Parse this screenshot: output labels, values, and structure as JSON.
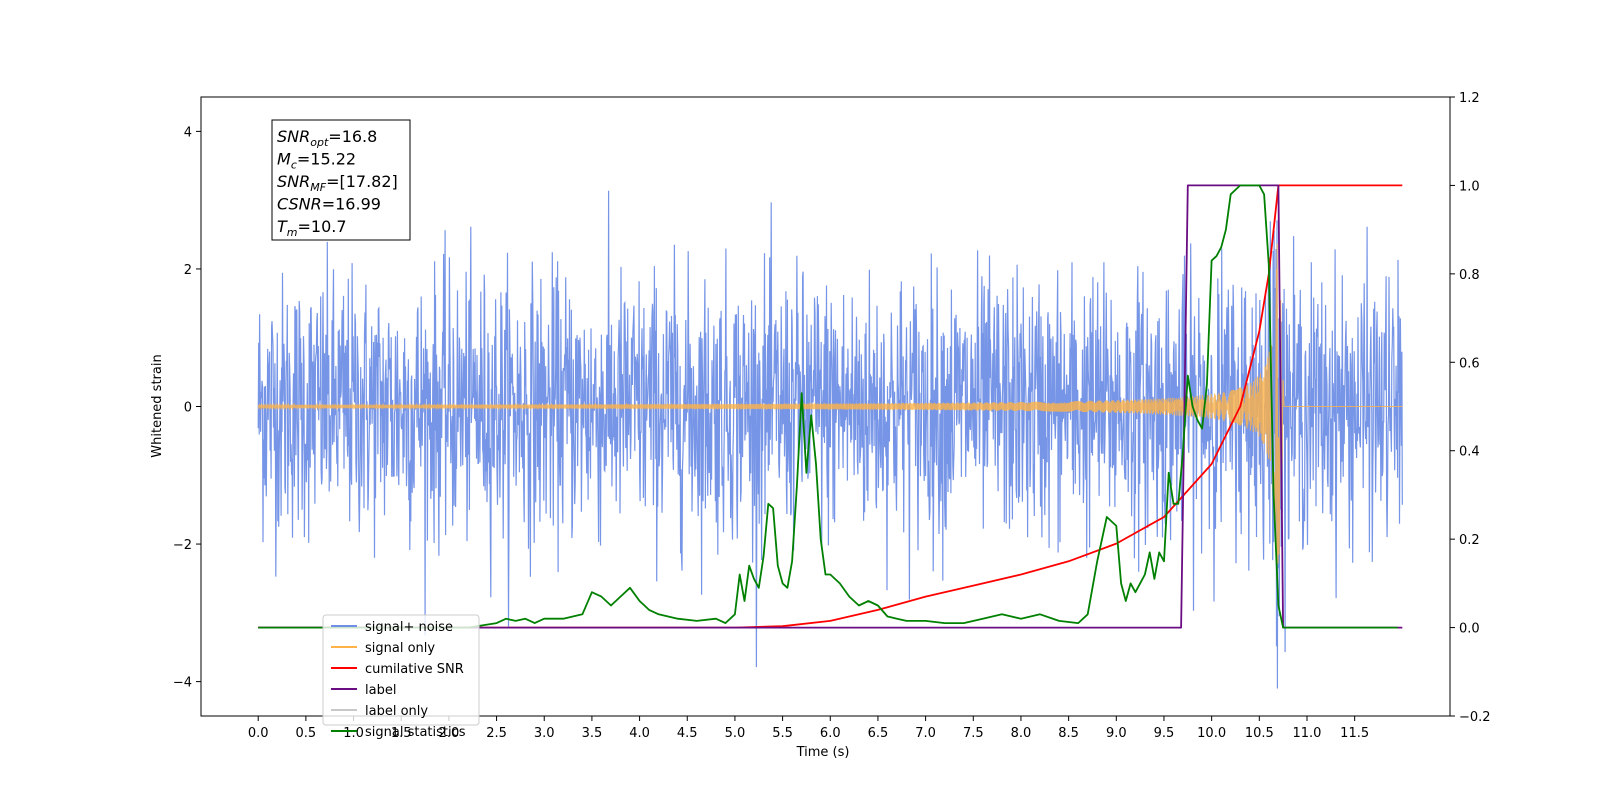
{
  "chart_data": {
    "type": "line",
    "xlabel": "Time (s)",
    "ylabel": "Whitened strain",
    "xlim": [
      -0.6,
      12.5
    ],
    "xticks": [
      "0.0",
      "0.5",
      "1.0",
      "1.5",
      "2.0",
      "2.5",
      "3.0",
      "3.5",
      "4.0",
      "4.5",
      "5.0",
      "5.5",
      "6.0",
      "6.5",
      "7.0",
      "7.5",
      "8.0",
      "8.5",
      "9.0",
      "9.5",
      "10.0",
      "10.5",
      "11.0",
      "11.5"
    ],
    "ylim_left": [
      -4.5,
      4.5
    ],
    "yticks_left": [
      "−4",
      "−2",
      "0",
      "2",
      "4"
    ],
    "ylim_right": [
      -0.2,
      1.2
    ],
    "yticks_right": [
      "−0.2",
      "0.0",
      "0.2",
      "0.4",
      "0.6",
      "0.8",
      "1.0",
      "1.2"
    ],
    "grid": false,
    "legend_position": "lower-left",
    "annotation": [
      {
        "base": "SNR",
        "sub": "opt",
        "value": "=16.8"
      },
      {
        "base": "M",
        "sub": "c",
        "value": "=15.22"
      },
      {
        "base": "SNR",
        "sub": "MF",
        "value": "=[17.82]"
      },
      {
        "base": "CSNR",
        "sub": "",
        "value": "=16.99"
      },
      {
        "base": "T",
        "sub": "m",
        "value": "=10.7"
      }
    ],
    "series": [
      {
        "name": "signal+ noise",
        "axis": "left",
        "color": "#6f8fe6",
        "description_values": {
          "noise_amplitude_approx": 1.0,
          "x_range": [
            0.0,
            12.0
          ]
        }
      },
      {
        "name": "signal only",
        "axis": "left",
        "color": "#ffb347",
        "chirp": {
          "merger_time": 10.7,
          "peak_amplitude": 2.6,
          "end_time": 12.0
        }
      },
      {
        "name": "cumilative SNR",
        "axis": "right",
        "color": "#ff0000",
        "x": [
          0.0,
          5.0,
          5.5,
          6.0,
          6.5,
          7.0,
          7.5,
          8.0,
          8.5,
          9.0,
          9.5,
          10.0,
          10.3,
          10.5,
          10.6,
          10.7,
          12.0
        ],
        "y": [
          0.0,
          0.0,
          0.003,
          0.015,
          0.04,
          0.07,
          0.095,
          0.12,
          0.15,
          0.19,
          0.25,
          0.37,
          0.5,
          0.67,
          0.8,
          1.0,
          1.0
        ]
      },
      {
        "name": "label",
        "axis": "right",
        "color": "#6a0d83",
        "x": [
          0.0,
          9.68,
          9.75,
          10.7,
          10.75,
          12.0
        ],
        "y": [
          0.0,
          0.0,
          1.0,
          1.0,
          0.0,
          0.0
        ]
      },
      {
        "name": "label only",
        "axis": "right",
        "color": "#c8c8c8",
        "x": [],
        "y": []
      },
      {
        "name": "signal statistics",
        "axis": "right",
        "color": "#008000",
        "x": [
          0.0,
          2.2,
          2.5,
          2.6,
          2.7,
          2.8,
          2.9,
          3.0,
          3.2,
          3.3,
          3.4,
          3.5,
          3.6,
          3.7,
          3.8,
          3.9,
          4.0,
          4.1,
          4.2,
          4.4,
          4.6,
          4.8,
          4.9,
          5.0,
          5.05,
          5.1,
          5.15,
          5.2,
          5.25,
          5.3,
          5.35,
          5.4,
          5.45,
          5.5,
          5.55,
          5.6,
          5.65,
          5.7,
          5.75,
          5.8,
          5.85,
          5.9,
          5.95,
          6.0,
          6.05,
          6.1,
          6.2,
          6.3,
          6.4,
          6.5,
          6.6,
          6.7,
          6.8,
          7.0,
          7.2,
          7.4,
          7.6,
          7.8,
          8.0,
          8.2,
          8.4,
          8.6,
          8.7,
          8.8,
          8.9,
          9.0,
          9.05,
          9.1,
          9.15,
          9.2,
          9.25,
          9.3,
          9.35,
          9.4,
          9.45,
          9.5,
          9.55,
          9.6,
          9.65,
          9.7,
          9.75,
          9.8,
          9.85,
          9.9,
          9.95,
          10.0,
          10.05,
          10.1,
          10.15,
          10.2,
          10.3,
          10.4,
          10.5,
          10.55,
          10.6,
          10.65,
          10.7,
          10.75,
          10.8,
          11.0,
          11.5,
          11.95
        ],
        "y": [
          0.0,
          0.0,
          0.01,
          0.02,
          0.015,
          0.02,
          0.01,
          0.02,
          0.02,
          0.025,
          0.03,
          0.08,
          0.07,
          0.05,
          0.07,
          0.09,
          0.06,
          0.04,
          0.03,
          0.02,
          0.015,
          0.02,
          0.01,
          0.03,
          0.12,
          0.06,
          0.14,
          0.11,
          0.09,
          0.16,
          0.28,
          0.27,
          0.14,
          0.1,
          0.09,
          0.15,
          0.32,
          0.53,
          0.35,
          0.48,
          0.37,
          0.2,
          0.12,
          0.12,
          0.11,
          0.1,
          0.07,
          0.05,
          0.06,
          0.05,
          0.025,
          0.02,
          0.015,
          0.015,
          0.01,
          0.01,
          0.02,
          0.03,
          0.02,
          0.03,
          0.015,
          0.01,
          0.03,
          0.15,
          0.25,
          0.23,
          0.1,
          0.06,
          0.1,
          0.08,
          0.1,
          0.12,
          0.17,
          0.11,
          0.17,
          0.15,
          0.35,
          0.28,
          0.28,
          0.4,
          0.57,
          0.5,
          0.47,
          0.45,
          0.55,
          0.83,
          0.84,
          0.86,
          0.9,
          0.98,
          1.0,
          1.0,
          1.0,
          0.98,
          0.82,
          0.3,
          0.05,
          0.0,
          0.0,
          0.0,
          0.0,
          0.0
        ]
      }
    ]
  }
}
